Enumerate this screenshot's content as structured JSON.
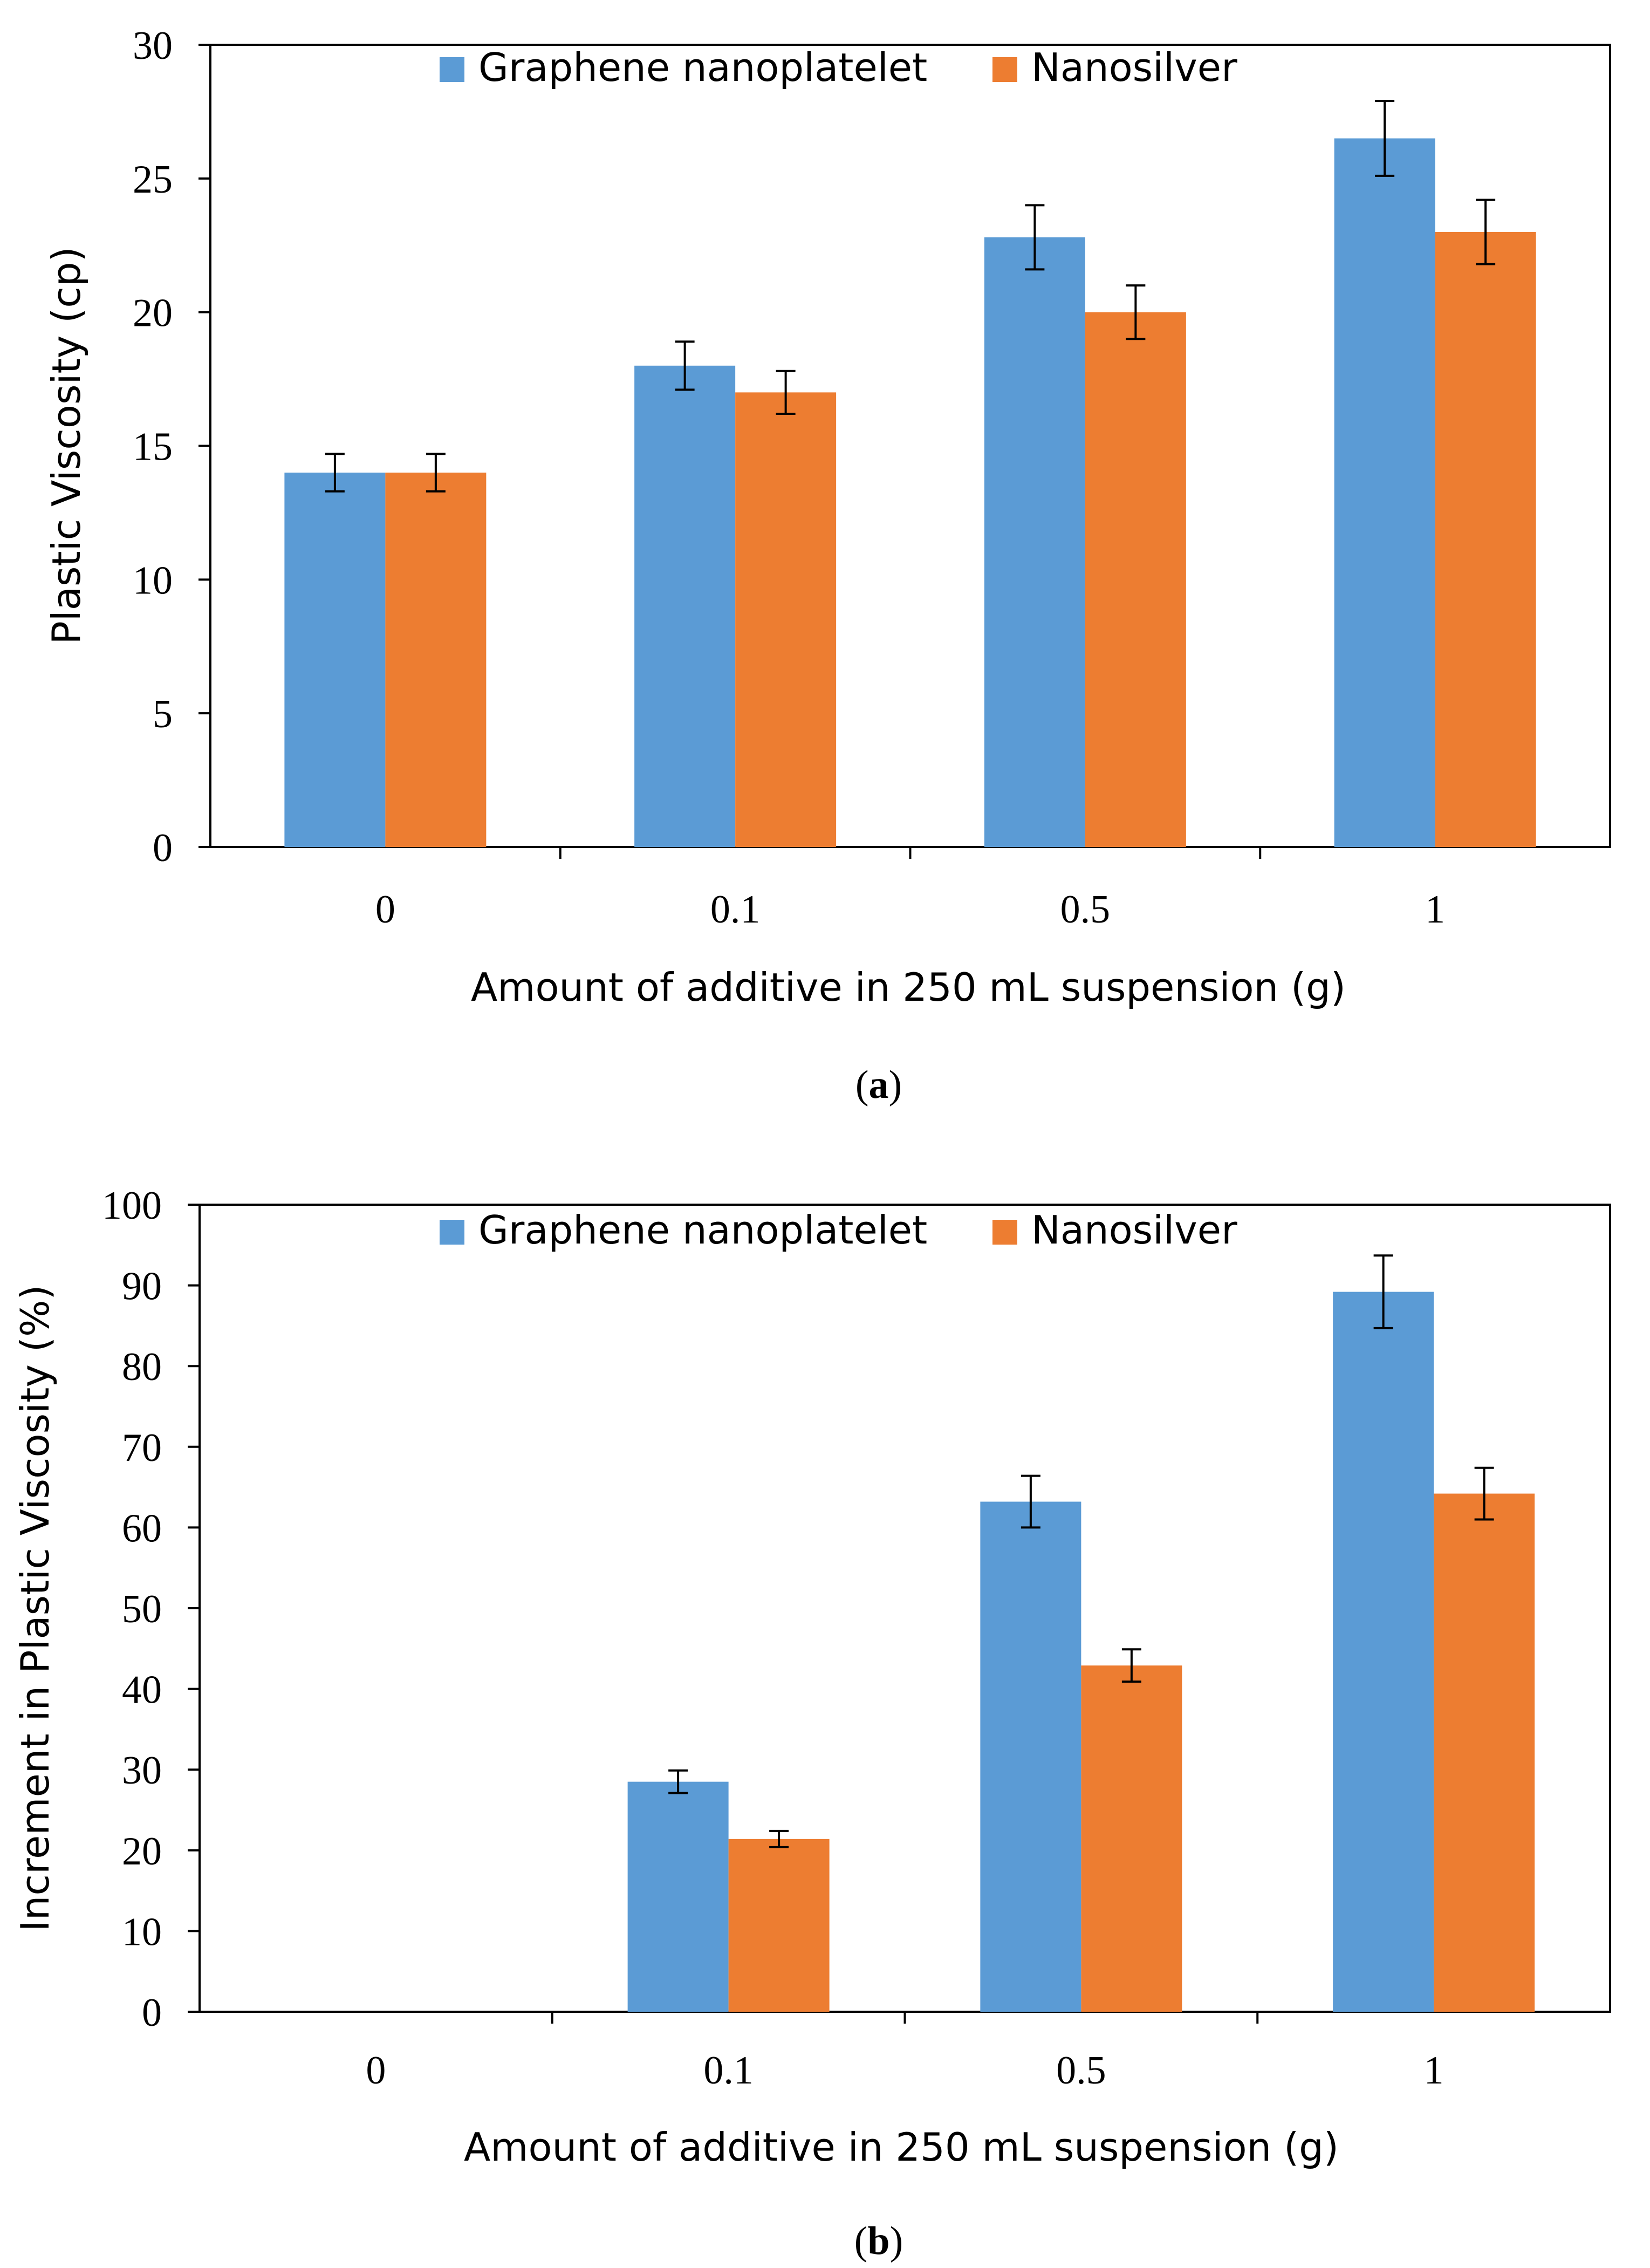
{
  "chart_data": [
    {
      "type": "bar",
      "panel": "a",
      "caption_open": "(",
      "caption_letter": "a",
      "caption_close": ")",
      "categories": [
        "0",
        "0.1",
        "0.5",
        "1"
      ],
      "series": [
        {
          "name": "Graphene nanoplatelet",
          "color": "#5B9BD5",
          "values": [
            14,
            18,
            22.8,
            26.5
          ],
          "errors": [
            0.7,
            0.9,
            1.2,
            1.4
          ]
        },
        {
          "name": "Nanosilver",
          "color": "#ED7D31",
          "values": [
            14,
            17,
            20,
            23
          ],
          "errors": [
            0.7,
            0.8,
            1.0,
            1.2
          ]
        }
      ],
      "xlabel": "Amount of additive in 250 mL suspension (g)",
      "ylabel": "Plastic Viscosity (cp)",
      "ylim": [
        0,
        30
      ],
      "yticks": [
        "0",
        "5",
        "10",
        "15",
        "20",
        "25",
        "30"
      ],
      "ytick_step": 5,
      "legend_position": "top-center"
    },
    {
      "type": "bar",
      "panel": "b",
      "caption_open": "(",
      "caption_letter": "b",
      "caption_close": ")",
      "categories": [
        "0",
        "0.1",
        "0.5",
        "1"
      ],
      "series": [
        {
          "name": "Graphene nanoplatelet",
          "color": "#5B9BD5",
          "values": [
            0,
            28.5,
            63.2,
            89.2
          ],
          "errors": [
            0,
            1.4,
            3.2,
            4.5
          ]
        },
        {
          "name": "Nanosilver",
          "color": "#ED7D31",
          "values": [
            0,
            21.4,
            42.9,
            64.2
          ],
          "errors": [
            0,
            1.0,
            2.0,
            3.2
          ]
        }
      ],
      "xlabel": "Amount of additive in 250 mL suspension (g)",
      "ylabel": "Increment in Plastic Viscosity (%)",
      "ylim": [
        0,
        100
      ],
      "yticks": [
        "0",
        "10",
        "20",
        "30",
        "40",
        "50",
        "60",
        "70",
        "80",
        "90",
        "100"
      ],
      "ytick_step": 10,
      "legend_position": "top-center"
    }
  ]
}
